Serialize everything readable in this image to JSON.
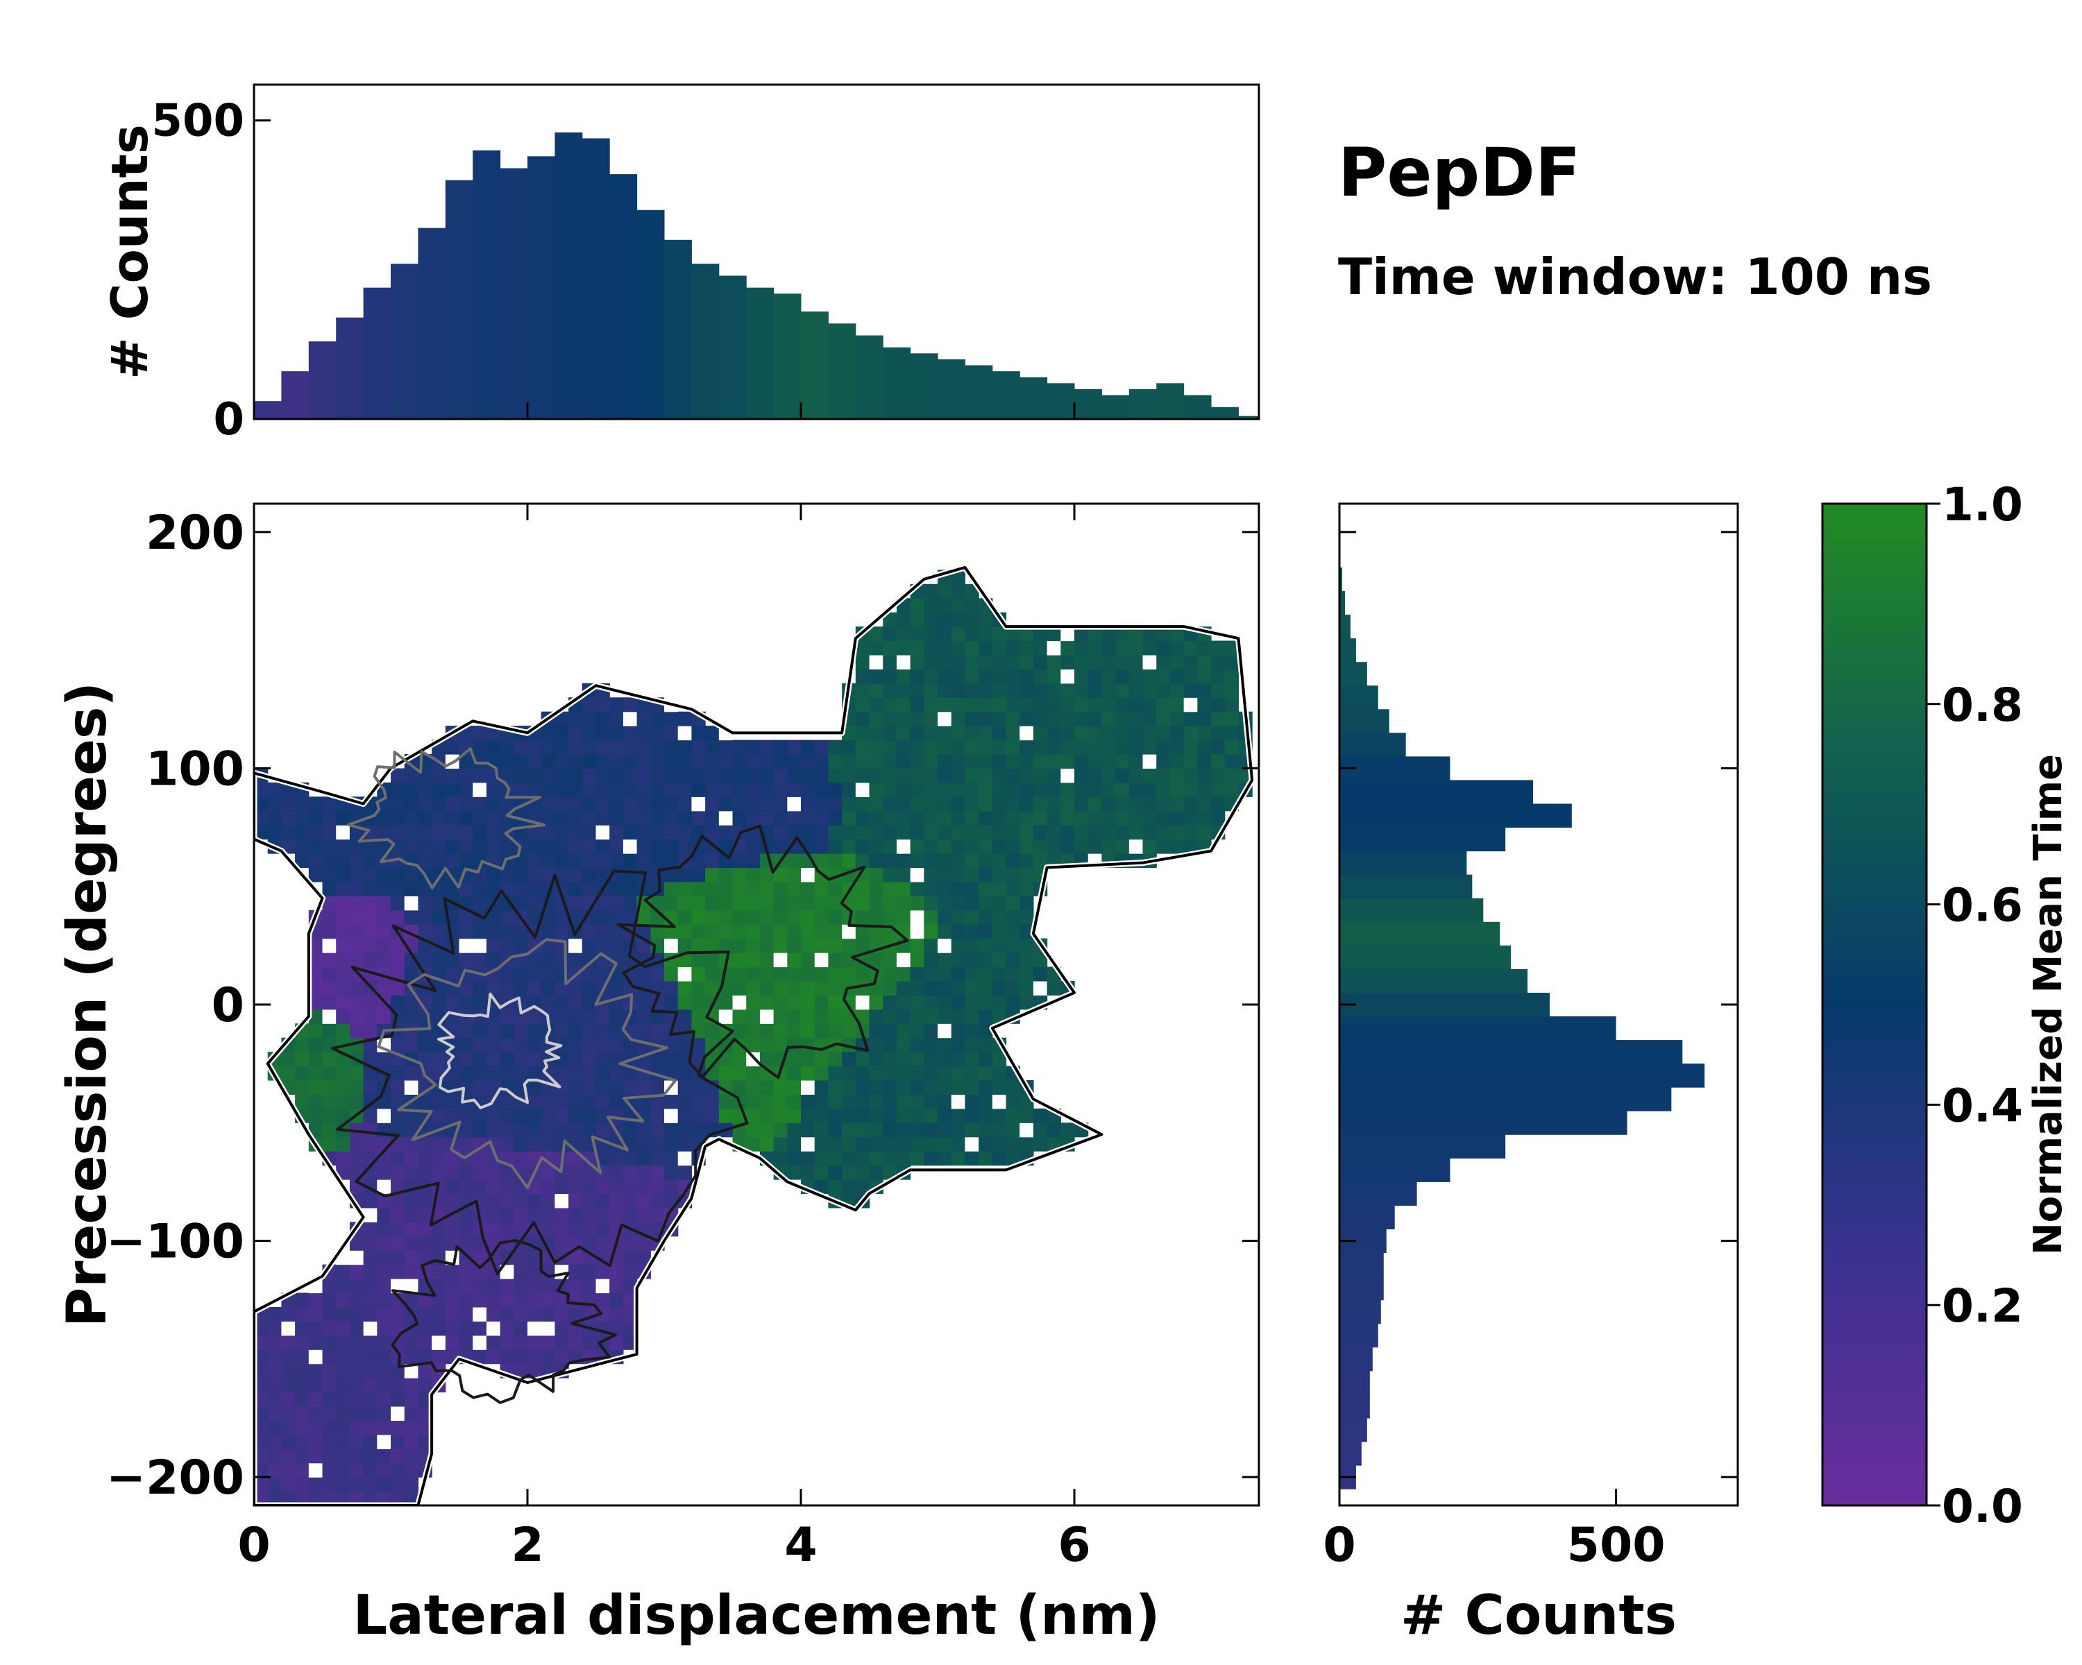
{
  "figure": {
    "title": "PepDF",
    "subtitle": "Time window: 100 ns",
    "colors": {
      "cmap_low": "#6a2c9f",
      "cmap_mid": "#063a6b",
      "cmap_high": "#228b22",
      "contour_outer": "#000000",
      "contour_inner_dark": "#1a1a1a",
      "contour_inner_light": "#cccccc"
    }
  },
  "chart_data": [
    {
      "id": "top-histogram",
      "type": "bar",
      "title": "",
      "xlabel": "",
      "ylabel": "# Counts",
      "xlim": [
        0,
        7.35
      ],
      "ylim": [
        0,
        560
      ],
      "yticks": [
        0,
        500
      ],
      "ytick_labels": [
        "0",
        "500"
      ],
      "bin_width": 0.05,
      "x": [
        0.1,
        0.3,
        0.5,
        0.7,
        0.9,
        1.1,
        1.3,
        1.5,
        1.7,
        1.9,
        2.1,
        2.3,
        2.5,
        2.7,
        2.9,
        3.1,
        3.3,
        3.5,
        3.7,
        3.9,
        4.1,
        4.3,
        4.5,
        4.7,
        4.9,
        5.1,
        5.3,
        5.5,
        5.7,
        5.9,
        6.1,
        6.3,
        6.5,
        6.7,
        6.9,
        7.1,
        7.3
      ],
      "values": [
        30,
        80,
        130,
        170,
        220,
        260,
        320,
        400,
        450,
        420,
        440,
        480,
        470,
        410,
        350,
        300,
        260,
        240,
        220,
        210,
        180,
        160,
        140,
        120,
        110,
        100,
        90,
        80,
        70,
        60,
        50,
        40,
        50,
        60,
        40,
        20,
        5
      ],
      "color_values": [
        0.25,
        0.22,
        0.28,
        0.32,
        0.35,
        0.38,
        0.4,
        0.42,
        0.44,
        0.43,
        0.45,
        0.46,
        0.47,
        0.48,
        0.52,
        0.56,
        0.6,
        0.62,
        0.66,
        0.7,
        0.72,
        0.7,
        0.68,
        0.66,
        0.66,
        0.64,
        0.64,
        0.64,
        0.65,
        0.65,
        0.66,
        0.66,
        0.67,
        0.68,
        0.66,
        0.65,
        0.65
      ]
    },
    {
      "id": "main-heatmap",
      "type": "heatmap",
      "xlabel": "Lateral displacement (nm)",
      "ylabel": "Precession (degrees)",
      "xlim": [
        0,
        7.35
      ],
      "ylim": [
        -212,
        212
      ],
      "xticks": [
        0,
        2,
        4,
        6
      ],
      "xtick_labels": [
        "0",
        "2",
        "4",
        "6"
      ],
      "yticks": [
        -200,
        -100,
        0,
        100,
        200
      ],
      "ytick_labels": [
        "−200",
        "−100",
        "0",
        "100",
        "200"
      ],
      "regions": [
        {
          "name": "purple-lower-left",
          "x": [
            0.0,
            1.0
          ],
          "y": [
            -212,
            -130
          ],
          "value": 0.22
        },
        {
          "name": "purple-lower-band",
          "x": [
            0.7,
            2.9
          ],
          "y": [
            -150,
            -60
          ],
          "value": 0.2
        },
        {
          "name": "blue-upper-left",
          "x": [
            0.0,
            2.3
          ],
          "y": [
            50,
            110
          ],
          "value": 0.4
        },
        {
          "name": "purple-left-patch",
          "x": [
            0.5,
            1.0
          ],
          "y": [
            -5,
            40
          ],
          "value": 0.12
        },
        {
          "name": "navy-core",
          "x": [
            1.0,
            3.5
          ],
          "y": [
            -60,
            30
          ],
          "value": 0.36
        },
        {
          "name": "blue-upper-band",
          "x": [
            1.5,
            4.4
          ],
          "y": [
            60,
            130
          ],
          "value": 0.4
        },
        {
          "name": "green-core",
          "x": [
            2.9,
            4.9
          ],
          "y": [
            -40,
            60
          ],
          "value": 0.9
        },
        {
          "name": "teal-right",
          "x": [
            4.0,
            7.2
          ],
          "y": [
            50,
            175
          ],
          "value": 0.68
        },
        {
          "name": "teal-lower-right",
          "x": [
            4.0,
            6.2
          ],
          "y": [
            -80,
            20
          ],
          "value": 0.66
        },
        {
          "name": "green-left-tip",
          "x": [
            0.1,
            0.6
          ],
          "y": [
            -50,
            -5
          ],
          "value": 0.82
        }
      ],
      "outline_polygon": [
        [
          0.0,
          98
        ],
        [
          0.5,
          90
        ],
        [
          0.8,
          85
        ],
        [
          1.0,
          100
        ],
        [
          1.3,
          110
        ],
        [
          1.6,
          120
        ],
        [
          2.0,
          115
        ],
        [
          2.5,
          135
        ],
        [
          3.2,
          125
        ],
        [
          3.5,
          115
        ],
        [
          4.3,
          115
        ],
        [
          4.4,
          155
        ],
        [
          4.9,
          180
        ],
        [
          5.2,
          185
        ],
        [
          5.5,
          160
        ],
        [
          6.2,
          160
        ],
        [
          6.8,
          160
        ],
        [
          7.2,
          155
        ],
        [
          7.3,
          95
        ],
        [
          7.0,
          65
        ],
        [
          6.5,
          60
        ],
        [
          5.8,
          58
        ],
        [
          5.7,
          30
        ],
        [
          6.0,
          5
        ],
        [
          5.4,
          -10
        ],
        [
          5.7,
          -40
        ],
        [
          6.2,
          -55
        ],
        [
          5.5,
          -70
        ],
        [
          4.8,
          -70
        ],
        [
          4.5,
          -80
        ],
        [
          4.4,
          -87
        ],
        [
          3.9,
          -75
        ],
        [
          3.7,
          -65
        ],
        [
          3.4,
          -57
        ],
        [
          3.3,
          -60
        ],
        [
          3.2,
          -82
        ],
        [
          3.0,
          -100
        ],
        [
          2.8,
          -120
        ],
        [
          2.8,
          -148
        ],
        [
          2.0,
          -160
        ],
        [
          1.5,
          -150
        ],
        [
          1.3,
          -165
        ],
        [
          1.3,
          -190
        ],
        [
          1.2,
          -212
        ],
        [
          0.0,
          -212
        ],
        [
          0.0,
          -130
        ],
        [
          0.5,
          -115
        ],
        [
          0.8,
          -90
        ],
        [
          0.4,
          -55
        ],
        [
          0.1,
          -25
        ],
        [
          0.4,
          -5
        ],
        [
          0.4,
          30
        ],
        [
          0.5,
          45
        ],
        [
          0.2,
          65
        ],
        [
          0.0,
          70
        ]
      ],
      "contours": [
        {
          "name": "contour-core-outer",
          "level": "low",
          "center": [
            2.2,
            -30
          ],
          "radius": [
            1.4,
            75
          ],
          "shade": "dark"
        },
        {
          "name": "contour-core-mid",
          "level": "mid",
          "center": [
            2.0,
            -25
          ],
          "radius": [
            0.9,
            45
          ],
          "shade": "mid"
        },
        {
          "name": "contour-core-inner",
          "level": "high",
          "center": [
            1.8,
            -20
          ],
          "radius": [
            0.45,
            20
          ],
          "shade": "light"
        },
        {
          "name": "contour-upper",
          "level": "mid",
          "center": [
            1.4,
            80
          ],
          "radius": [
            0.6,
            25
          ],
          "shade": "mid"
        },
        {
          "name": "contour-green",
          "level": "low",
          "center": [
            3.7,
            20
          ],
          "radius": [
            0.9,
            45
          ],
          "shade": "dark"
        },
        {
          "name": "contour-lower",
          "level": "low",
          "center": [
            1.8,
            -135
          ],
          "radius": [
            0.7,
            30
          ],
          "shade": "dark"
        }
      ]
    },
    {
      "id": "right-histogram",
      "type": "bar",
      "orientation": "horizontal",
      "xlabel": "# Counts",
      "ylabel": "",
      "xlim": [
        0,
        720
      ],
      "ylim": [
        -212,
        212
      ],
      "xticks": [
        0,
        500
      ],
      "xtick_labels": [
        "0",
        "500"
      ],
      "bin_width": 2,
      "y": [
        -200,
        -190,
        -180,
        -170,
        -160,
        -150,
        -140,
        -130,
        -120,
        -110,
        -100,
        -90,
        -80,
        -70,
        -60,
        -50,
        -40,
        -30,
        -20,
        -10,
        0,
        10,
        20,
        30,
        40,
        50,
        60,
        70,
        80,
        90,
        100,
        110,
        120,
        130,
        140,
        150,
        160,
        170,
        180
      ],
      "values": [
        30,
        40,
        50,
        55,
        55,
        60,
        70,
        75,
        80,
        80,
        85,
        100,
        140,
        200,
        300,
        520,
        600,
        660,
        620,
        500,
        380,
        340,
        310,
        290,
        260,
        240,
        230,
        300,
        420,
        350,
        200,
        120,
        90,
        70,
        50,
        30,
        20,
        10,
        5
      ],
      "color_values": [
        0.3,
        0.3,
        0.31,
        0.32,
        0.33,
        0.34,
        0.35,
        0.36,
        0.37,
        0.38,
        0.39,
        0.4,
        0.42,
        0.44,
        0.45,
        0.46,
        0.47,
        0.48,
        0.49,
        0.52,
        0.58,
        0.64,
        0.7,
        0.72,
        0.68,
        0.62,
        0.56,
        0.52,
        0.5,
        0.5,
        0.52,
        0.56,
        0.6,
        0.62,
        0.64,
        0.64,
        0.66,
        0.66,
        0.66
      ]
    }
  ],
  "colorbar": {
    "label": "Normalized Mean Time",
    "min": 0.0,
    "max": 1.0,
    "ticks": [
      0.0,
      0.2,
      0.4,
      0.6,
      0.8,
      1.0
    ],
    "tick_labels": [
      "0.0",
      "0.2",
      "0.4",
      "0.6",
      "0.8",
      "1.0"
    ]
  }
}
